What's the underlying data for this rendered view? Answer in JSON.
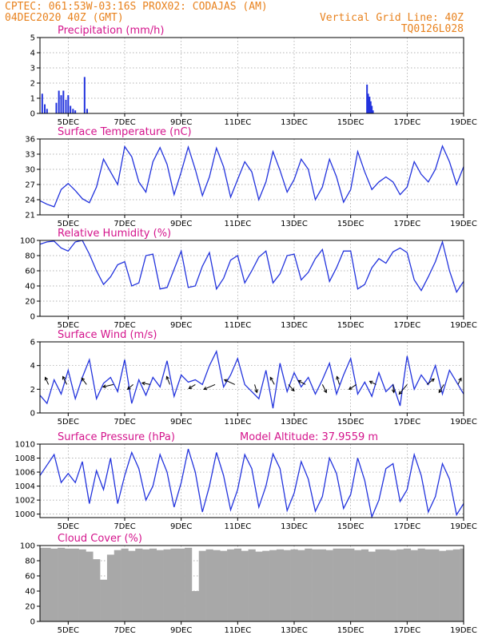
{
  "header": {
    "line1": "CPTEC:   061:53W-03:16S   PROX02: CODAJAS (AM)",
    "line2_left": "04DEC2020 40Z (GMT)",
    "line2_right": "Vertical Grid Line: 40Z",
    "line3_right": "TQ0126L028"
  },
  "colors": {
    "header": "#e8821e",
    "title": "#d4148c",
    "line": "#2233dd",
    "bar": "#2233dd",
    "cloud": "#a8a8a8"
  },
  "x_ticks": [
    "5DEC",
    "7DEC",
    "9DEC",
    "11DEC",
    "13DEC",
    "15DEC",
    "17DEC",
    "19DEC"
  ],
  "chart_data": [
    {
      "type": "bar",
      "title": "Precipitation (mm/h)",
      "ylim": [
        0,
        5
      ],
      "yticks": [
        0,
        1,
        2,
        3,
        4,
        5
      ],
      "xlim": [
        4.0,
        19.0
      ],
      "x": [
        4.08,
        4.17,
        4.25,
        4.58,
        4.67,
        4.75,
        4.83,
        4.92,
        5.0,
        5.08,
        5.17,
        5.25,
        5.58,
        5.67,
        15.58,
        15.62,
        15.67,
        15.71,
        15.75,
        15.79
      ],
      "values": [
        1.3,
        0.6,
        0.3,
        0.7,
        1.5,
        1.2,
        1.5,
        0.9,
        1.2,
        0.5,
        0.3,
        0.2,
        2.4,
        0.3,
        1.9,
        1.3,
        1.1,
        0.8,
        0.5,
        0.2
      ]
    },
    {
      "type": "line",
      "title": "Surface Temperature (nC)",
      "ylim": [
        21,
        36
      ],
      "yticks": [
        21,
        24,
        27,
        30,
        33,
        36
      ],
      "xlim": [
        4.0,
        19.0
      ],
      "x": [
        4.0,
        4.25,
        4.5,
        4.75,
        5.0,
        5.25,
        5.5,
        5.75,
        6.0,
        6.25,
        6.5,
        6.75,
        7.0,
        7.25,
        7.5,
        7.75,
        8.0,
        8.25,
        8.5,
        8.75,
        9.0,
        9.25,
        9.5,
        9.75,
        10.0,
        10.25,
        10.5,
        10.75,
        11.0,
        11.25,
        11.5,
        11.75,
        12.0,
        12.25,
        12.5,
        12.75,
        13.0,
        13.25,
        13.5,
        13.75,
        14.0,
        14.25,
        14.5,
        14.75,
        15.0,
        15.25,
        15.5,
        15.75,
        16.0,
        16.25,
        16.5,
        16.75,
        17.0,
        17.25,
        17.5,
        17.75,
        18.0,
        18.25,
        18.5,
        18.75,
        19.0
      ],
      "values": [
        23.8,
        23.1,
        22.6,
        26.0,
        27.2,
        25.8,
        24.2,
        23.4,
        26.5,
        32.0,
        29.5,
        27.0,
        34.5,
        32.5,
        27.5,
        25.5,
        31.5,
        34.3,
        31.0,
        25.0,
        29.5,
        34.4,
        30.0,
        24.8,
        28.5,
        34.2,
        30.5,
        24.5,
        28.0,
        31.5,
        29.5,
        24.0,
        27.5,
        33.5,
        29.8,
        25.5,
        28.0,
        32.0,
        30.0,
        24.0,
        26.5,
        32.0,
        28.5,
        23.5,
        26.0,
        33.5,
        29.5,
        26.0,
        27.5,
        28.5,
        27.5,
        25.0,
        26.5,
        31.5,
        29.0,
        27.5,
        30.0,
        34.6,
        31.5,
        27.0,
        30.5
      ]
    },
    {
      "type": "line",
      "title": "Relative Humidity (%)",
      "ylim": [
        0,
        100
      ],
      "yticks": [
        0,
        20,
        40,
        60,
        80,
        100
      ],
      "xlim": [
        4.0,
        19.0
      ],
      "x": [
        4.0,
        4.25,
        4.5,
        4.75,
        5.0,
        5.25,
        5.5,
        5.75,
        6.0,
        6.25,
        6.5,
        6.75,
        7.0,
        7.25,
        7.5,
        7.75,
        8.0,
        8.25,
        8.5,
        8.75,
        9.0,
        9.25,
        9.5,
        9.75,
        10.0,
        10.25,
        10.5,
        10.75,
        11.0,
        11.25,
        11.5,
        11.75,
        12.0,
        12.25,
        12.5,
        12.75,
        13.0,
        13.25,
        13.5,
        13.75,
        14.0,
        14.25,
        14.5,
        14.75,
        15.0,
        15.25,
        15.5,
        15.75,
        16.0,
        16.25,
        16.5,
        16.75,
        17.0,
        17.25,
        17.5,
        17.75,
        18.0,
        18.25,
        18.5,
        18.75,
        19.0
      ],
      "values": [
        95,
        98,
        99,
        90,
        86,
        98,
        100,
        82,
        60,
        42,
        52,
        68,
        72,
        40,
        44,
        80,
        82,
        36,
        38,
        62,
        86,
        38,
        40,
        66,
        84,
        36,
        50,
        74,
        80,
        44,
        60,
        78,
        86,
        44,
        56,
        80,
        82,
        48,
        58,
        76,
        88,
        46,
        64,
        86,
        86,
        36,
        42,
        64,
        76,
        70,
        85,
        90,
        84,
        48,
        34,
        52,
        72,
        98,
        60,
        32,
        46
      ]
    },
    {
      "type": "line",
      "title": "Surface Wind (m/s)",
      "ylim": [
        0,
        6
      ],
      "yticks": [
        0,
        2,
        4,
        6
      ],
      "xlim": [
        4.0,
        19.0
      ],
      "x": [
        4.0,
        4.25,
        4.5,
        4.75,
        5.0,
        5.25,
        5.5,
        5.75,
        6.0,
        6.25,
        6.5,
        6.75,
        7.0,
        7.25,
        7.5,
        7.75,
        8.0,
        8.25,
        8.5,
        8.75,
        9.0,
        9.25,
        9.5,
        9.75,
        10.0,
        10.25,
        10.5,
        10.75,
        11.0,
        11.25,
        11.5,
        11.75,
        12.0,
        12.25,
        12.5,
        12.75,
        13.0,
        13.25,
        13.5,
        13.75,
        14.0,
        14.25,
        14.5,
        14.75,
        15.0,
        15.25,
        15.5,
        15.75,
        16.0,
        16.25,
        16.5,
        16.75,
        17.0,
        17.25,
        17.5,
        17.75,
        18.0,
        18.25,
        18.5,
        18.75,
        19.0
      ],
      "values": [
        1.5,
        0.8,
        2.8,
        1.6,
        3.6,
        1.2,
        3.0,
        4.5,
        1.2,
        2.5,
        3.0,
        1.8,
        4.5,
        0.8,
        2.8,
        1.5,
        3.0,
        2.2,
        4.4,
        1.4,
        3.2,
        2.6,
        2.8,
        2.4,
        4.0,
        5.2,
        2.2,
        3.2,
        4.6,
        2.4,
        1.8,
        1.2,
        3.6,
        0.4,
        4.2,
        1.8,
        3.4,
        2.2,
        3.0,
        1.6,
        2.8,
        4.2,
        1.6,
        3.2,
        4.6,
        1.6,
        2.6,
        1.4,
        3.4,
        1.8,
        2.4,
        0.6,
        4.8,
        2.0,
        3.2,
        2.4,
        4.0,
        1.6,
        3.6,
        2.6,
        1.6
      ],
      "vectors": [
        {
          "x": 4.3,
          "dx": -0.4,
          "dy": 0.9
        },
        {
          "x": 4.95,
          "dx": -0.5,
          "dy": 1.0
        },
        {
          "x": 5.65,
          "dx": -0.6,
          "dy": 0.8
        },
        {
          "x": 6.6,
          "dx": -1.3,
          "dy": -0.3
        },
        {
          "x": 7.3,
          "dx": -0.7,
          "dy": -0.6
        },
        {
          "x": 7.9,
          "dx": -1.0,
          "dy": 0.2
        },
        {
          "x": 8.6,
          "dx": -0.4,
          "dy": 1.0
        },
        {
          "x": 9.5,
          "dx": -0.8,
          "dy": -0.5
        },
        {
          "x": 10.2,
          "dx": -1.4,
          "dy": -0.6
        },
        {
          "x": 10.9,
          "dx": -1.3,
          "dy": 0.6
        },
        {
          "x": 11.6,
          "dx": 0.3,
          "dy": -1.0
        },
        {
          "x": 12.3,
          "dx": -0.5,
          "dy": 0.9
        },
        {
          "x": 12.8,
          "dx": 0.7,
          "dy": -0.8
        },
        {
          "x": 13.4,
          "dx": -0.9,
          "dy": 0.5
        },
        {
          "x": 14.0,
          "dx": 0.5,
          "dy": -1.0
        },
        {
          "x": 14.6,
          "dx": -0.3,
          "dy": 1.0
        },
        {
          "x": 15.2,
          "dx": -0.9,
          "dy": -0.6
        },
        {
          "x": 15.9,
          "dx": -0.8,
          "dy": 0.4
        },
        {
          "x": 16.5,
          "dx": 0.1,
          "dy": -1.0
        },
        {
          "x": 17.0,
          "dx": -1.0,
          "dy": -1.2
        },
        {
          "x": 17.7,
          "dx": 0.9,
          "dy": 0.7
        },
        {
          "x": 18.3,
          "dx": -0.6,
          "dy": -1.0
        },
        {
          "x": 18.8,
          "dx": 0.4,
          "dy": 0.8
        }
      ]
    },
    {
      "type": "line",
      "title": "Surface Pressure (hPa)",
      "subtitle": "Model Altitude: 37.9559  m",
      "ylim": [
        999.5,
        1010
      ],
      "yticks": [
        1000,
        1002,
        1004,
        1006,
        1008,
        1010
      ],
      "xlim": [
        4.0,
        19.0
      ],
      "x": [
        4.0,
        4.25,
        4.5,
        4.75,
        5.0,
        5.25,
        5.5,
        5.75,
        6.0,
        6.25,
        6.5,
        6.75,
        7.0,
        7.25,
        7.5,
        7.75,
        8.0,
        8.25,
        8.5,
        8.75,
        9.0,
        9.25,
        9.5,
        9.75,
        10.0,
        10.25,
        10.5,
        10.75,
        11.0,
        11.25,
        11.5,
        11.75,
        12.0,
        12.25,
        12.5,
        12.75,
        13.0,
        13.25,
        13.5,
        13.75,
        14.0,
        14.25,
        14.5,
        14.75,
        15.0,
        15.25,
        15.5,
        15.75,
        16.0,
        16.25,
        16.5,
        16.75,
        17.0,
        17.25,
        17.5,
        17.75,
        18.0,
        18.25,
        18.5,
        18.75,
        19.0
      ],
      "values": [
        1005.5,
        1007.0,
        1008.5,
        1004.5,
        1005.8,
        1004.5,
        1007.5,
        1001.5,
        1006.2,
        1003.5,
        1008.0,
        1001.5,
        1005.5,
        1008.8,
        1006.5,
        1002.0,
        1004.0,
        1008.5,
        1006.0,
        1001.0,
        1004.5,
        1009.3,
        1006.0,
        1000.3,
        1004.0,
        1008.8,
        1005.5,
        1000.6,
        1003.5,
        1008.5,
        1006.5,
        1001.0,
        1004.0,
        1008.6,
        1006.5,
        1000.5,
        1003.0,
        1007.5,
        1005.0,
        1000.4,
        1002.5,
        1008.0,
        1005.8,
        1000.8,
        1002.8,
        1008.0,
        1004.8,
        999.6,
        1002.0,
        1006.5,
        1007.2,
        1001.8,
        1003.5,
        1008.5,
        1005.5,
        1000.3,
        1002.5,
        1007.2,
        1005.0,
        999.9,
        1001.5
      ]
    },
    {
      "type": "area",
      "title": "Cloud Cover (%)",
      "ylim": [
        0,
        100
      ],
      "yticks": [
        0,
        20,
        40,
        60,
        80,
        100
      ],
      "xlim": [
        4.0,
        19.0
      ],
      "x": [
        4.0,
        4.25,
        4.5,
        4.75,
        5.0,
        5.25,
        5.5,
        5.75,
        6.0,
        6.25,
        6.5,
        6.75,
        7.0,
        7.25,
        7.5,
        7.75,
        8.0,
        8.25,
        8.5,
        8.75,
        9.0,
        9.25,
        9.5,
        9.75,
        10.0,
        10.25,
        10.5,
        10.75,
        11.0,
        11.25,
        11.5,
        11.75,
        12.0,
        12.25,
        12.5,
        12.75,
        13.0,
        13.25,
        13.5,
        13.75,
        14.0,
        14.25,
        14.5,
        14.75,
        15.0,
        15.25,
        15.5,
        15.75,
        16.0,
        16.25,
        16.5,
        16.75,
        17.0,
        17.25,
        17.5,
        17.75,
        18.0,
        18.25,
        18.5,
        18.75,
        19.0
      ],
      "values": [
        97,
        97,
        96,
        97,
        96,
        96,
        95,
        92,
        82,
        55,
        88,
        94,
        96,
        93,
        96,
        95,
        96,
        94,
        95,
        96,
        96,
        97,
        40,
        93,
        95,
        94,
        93,
        95,
        96,
        93,
        95,
        92,
        93,
        94,
        95,
        94,
        95,
        94,
        96,
        95,
        95,
        94,
        96,
        96,
        96,
        94,
        95,
        92,
        95,
        95,
        94,
        95,
        96,
        94,
        96,
        95,
        95,
        93,
        94,
        95,
        96
      ]
    }
  ]
}
